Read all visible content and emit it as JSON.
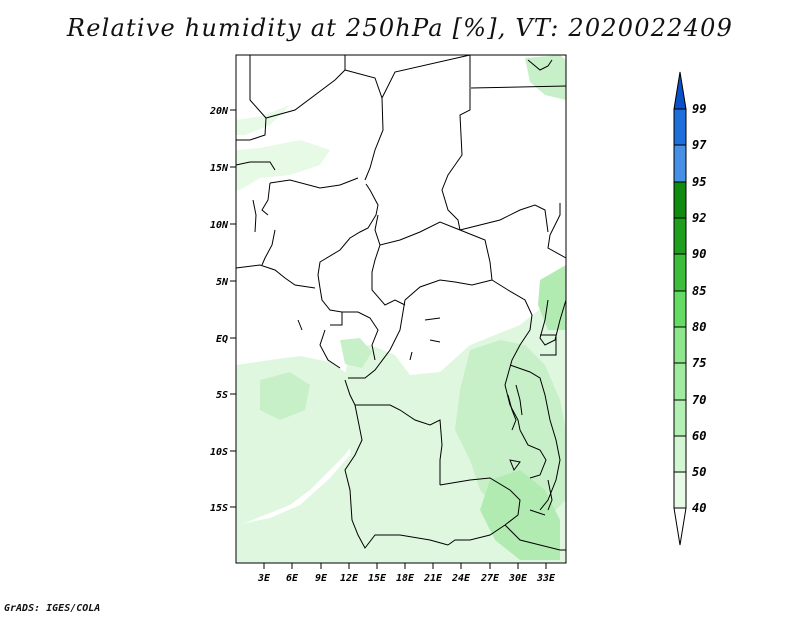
{
  "title": "Relative humidity at 250hPa [%], VT: 2020022409",
  "credit": "GrADS: IGES/COLA",
  "map": {
    "lat_labels": [
      "20N",
      "15N",
      "10N",
      "5N",
      "EQ",
      "5S",
      "10S",
      "15S"
    ],
    "lon_labels": [
      "3E",
      "6E",
      "9E",
      "12E",
      "15E",
      "18E",
      "21E",
      "24E",
      "27E",
      "30E",
      "33E"
    ]
  },
  "colorbar": {
    "levels": [
      "40",
      "50",
      "60",
      "70",
      "75",
      "80",
      "85",
      "90",
      "92",
      "95",
      "97",
      "99"
    ],
    "colors": [
      "#ffffff",
      "#e6fae6",
      "#d2f5d2",
      "#b4f0b4",
      "#a0eba0",
      "#8ce68c",
      "#64dc64",
      "#3cbe3c",
      "#1ea01e",
      "#0f8c0f",
      "#4690e6",
      "#1e6edc",
      "#0a50c8"
    ]
  }
}
